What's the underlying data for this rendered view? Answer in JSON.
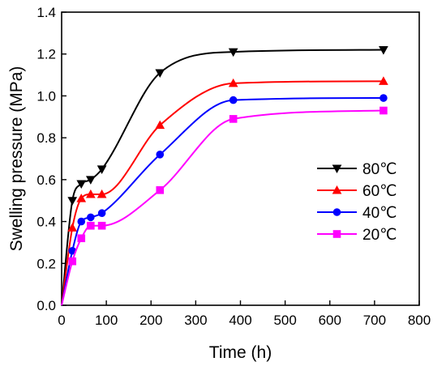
{
  "chart_data": {
    "type": "line",
    "title": "",
    "xlabel": "Time (h)",
    "ylabel": "Swelling pressure (MPa)",
    "xlim": [
      0,
      800
    ],
    "ylim": [
      0,
      1.4
    ],
    "xticks": [
      "0",
      "100",
      "200",
      "300",
      "400",
      "500",
      "600",
      "700",
      "800"
    ],
    "yticks": [
      "0.0",
      "0.2",
      "0.4",
      "0.6",
      "0.8",
      "1.0",
      "1.2",
      "1.4"
    ],
    "grid": false,
    "legend_position": "right",
    "series": [
      {
        "name": "80℃",
        "color": "#000000",
        "marker": "triangle-down",
        "points": [
          [
            0,
            0.0
          ],
          [
            24,
            0.5
          ],
          [
            44,
            0.58
          ],
          [
            65,
            0.6
          ],
          [
            90,
            0.65
          ],
          [
            220,
            1.11
          ],
          [
            384,
            1.21
          ],
          [
            720,
            1.22
          ]
        ]
      },
      {
        "name": "60℃",
        "color": "#ff0000",
        "marker": "triangle-up",
        "points": [
          [
            0,
            0.0
          ],
          [
            24,
            0.37
          ],
          [
            44,
            0.51
          ],
          [
            65,
            0.53
          ],
          [
            90,
            0.53
          ],
          [
            220,
            0.86
          ],
          [
            384,
            1.06
          ],
          [
            720,
            1.07
          ]
        ]
      },
      {
        "name": "40℃",
        "color": "#0000ff",
        "marker": "circle",
        "points": [
          [
            0,
            0.0
          ],
          [
            24,
            0.26
          ],
          [
            44,
            0.4
          ],
          [
            65,
            0.42
          ],
          [
            90,
            0.44
          ],
          [
            220,
            0.72
          ],
          [
            384,
            0.98
          ],
          [
            720,
            0.99
          ]
        ]
      },
      {
        "name": "20℃",
        "color": "#ff00ff",
        "marker": "square",
        "points": [
          [
            0,
            0.0
          ],
          [
            24,
            0.21
          ],
          [
            44,
            0.32
          ],
          [
            65,
            0.38
          ],
          [
            90,
            0.38
          ],
          [
            220,
            0.55
          ],
          [
            384,
            0.89
          ],
          [
            720,
            0.93
          ]
        ]
      }
    ]
  }
}
